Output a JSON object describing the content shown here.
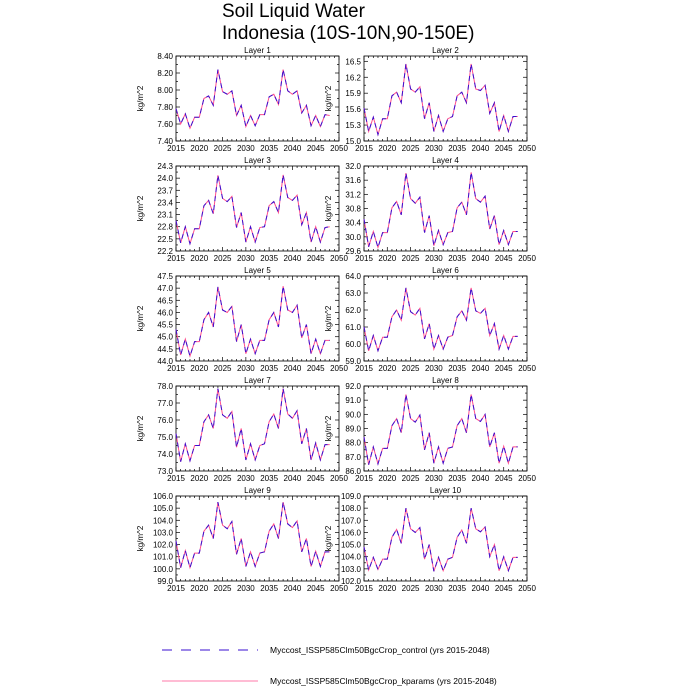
{
  "figure": {
    "title_line1": "Soil Liquid Water",
    "title_line2": "Indonesia (10S-10N,90-150E)"
  },
  "colors": {
    "control": "#3a0fd0",
    "kparams": "#ff4d8c"
  },
  "legend": {
    "control_label": "Myccost_ISSP585Clm50BgcCrop_control (yrs 2015-2048)",
    "kparams_label": "Myccost_ISSP585Clm50BgcCrop_kparams (yrs 2015-2048)"
  },
  "chart_data": {
    "type": "line",
    "xlim": [
      2015,
      2050
    ],
    "xticks": [
      2015,
      2020,
      2025,
      2030,
      2035,
      2040,
      2045,
      2050
    ],
    "years": [
      2015,
      2016,
      2017,
      2018,
      2019,
      2020,
      2021,
      2022,
      2023,
      2024,
      2025,
      2026,
      2027,
      2028,
      2029,
      2030,
      2031,
      2032,
      2033,
      2034,
      2035,
      2036,
      2037,
      2038,
      2039,
      2040,
      2041,
      2042,
      2043,
      2044,
      2045,
      2046,
      2047,
      2048
    ],
    "series_names": [
      "Myccost_ISSP585Clm50BgcCrop_control",
      "Myccost_ISSP585Clm50BgcCrop_kparams"
    ],
    "panels": [
      {
        "title": "Layer 1",
        "ylabel": "kg/m^2",
        "ylim": [
          7.4,
          8.4
        ],
        "yticks": [
          "7.40",
          "7.60",
          "7.80",
          "8.00",
          "8.20",
          "8.40"
        ],
        "values": [
          7.78,
          7.6,
          7.72,
          7.55,
          7.68,
          7.68,
          7.9,
          7.93,
          7.82,
          8.24,
          7.98,
          7.95,
          7.99,
          7.7,
          7.82,
          7.57,
          7.7,
          7.58,
          7.71,
          7.71,
          7.92,
          7.95,
          7.83,
          8.24,
          7.99,
          7.95,
          7.99,
          7.73,
          7.82,
          7.58,
          7.7,
          7.57,
          7.71,
          7.7
        ]
      },
      {
        "title": "Layer 2",
        "ylabel": "kg/m^2",
        "ylim": [
          15.0,
          16.6
        ],
        "yticks": [
          "15.0",
          "15.3",
          "15.6",
          "15.9",
          "16.2",
          "16.5"
        ],
        "values": [
          15.62,
          15.18,
          15.45,
          15.12,
          15.42,
          15.42,
          15.85,
          15.92,
          15.72,
          16.45,
          15.98,
          15.92,
          16.02,
          15.42,
          15.72,
          15.18,
          15.48,
          15.18,
          15.42,
          15.46,
          15.85,
          15.92,
          15.72,
          16.45,
          15.98,
          15.95,
          16.05,
          15.52,
          15.72,
          15.18,
          15.48,
          15.18,
          15.46,
          15.46
        ]
      },
      {
        "title": "Layer 3",
        "ylabel": "kg/m^2",
        "ylim": [
          22.2,
          24.3
        ],
        "yticks": [
          "22.2",
          "22.5",
          "22.8",
          "23.1",
          "23.4",
          "23.7",
          "24.0",
          "24.3"
        ],
        "values": [
          22.95,
          22.4,
          22.8,
          22.38,
          22.75,
          22.75,
          23.32,
          23.45,
          23.12,
          24.07,
          23.5,
          23.42,
          23.55,
          22.78,
          23.15,
          22.42,
          22.8,
          22.42,
          22.78,
          22.8,
          23.32,
          23.42,
          23.15,
          24.08,
          23.52,
          23.45,
          23.58,
          22.85,
          23.15,
          22.42,
          22.8,
          22.42,
          22.78,
          22.8
        ]
      },
      {
        "title": "Layer 4",
        "ylabel": "kg/m^2",
        "ylim": [
          29.6,
          32.0
        ],
        "yticks": [
          "29.6",
          "30.0",
          "30.4",
          "30.8",
          "31.2",
          "31.6",
          "32.0"
        ],
        "values": [
          30.5,
          29.72,
          30.15,
          29.7,
          30.12,
          30.12,
          30.82,
          31.0,
          30.62,
          31.8,
          31.08,
          30.95,
          31.12,
          30.12,
          30.6,
          29.75,
          30.18,
          29.78,
          30.12,
          30.15,
          30.82,
          30.98,
          30.62,
          31.82,
          31.08,
          30.98,
          31.15,
          30.22,
          30.6,
          29.78,
          30.18,
          29.78,
          30.15,
          30.15
        ]
      },
      {
        "title": "Layer 5",
        "ylabel": "kg/m^2",
        "ylim": [
          44.0,
          47.5
        ],
        "yticks": [
          "44.0",
          "44.5",
          "45.0",
          "45.5",
          "46.0",
          "46.5",
          "47.0",
          "47.5"
        ],
        "values": [
          45.3,
          44.25,
          44.9,
          44.2,
          44.8,
          44.8,
          45.7,
          46.0,
          45.4,
          47.05,
          46.1,
          46.0,
          46.25,
          44.8,
          45.5,
          44.3,
          44.9,
          44.3,
          44.85,
          44.85,
          45.7,
          46.0,
          45.4,
          47.08,
          46.1,
          46.0,
          46.3,
          44.95,
          45.5,
          44.3,
          44.9,
          44.3,
          44.85,
          44.85
        ]
      },
      {
        "title": "Layer 6",
        "ylabel": "kg/m^2",
        "ylim": [
          59.0,
          64.0
        ],
        "yticks": [
          "59.0",
          "60.0",
          "61.0",
          "62.0",
          "63.0",
          "64.0"
        ],
        "values": [
          61.0,
          59.6,
          60.5,
          59.6,
          60.4,
          60.4,
          61.6,
          62.0,
          61.4,
          63.3,
          61.9,
          61.7,
          62.1,
          60.3,
          61.2,
          59.7,
          60.5,
          59.7,
          60.4,
          60.5,
          61.6,
          61.95,
          61.4,
          63.3,
          61.95,
          61.8,
          62.1,
          60.5,
          61.2,
          59.7,
          60.5,
          59.7,
          60.45,
          60.45
        ]
      },
      {
        "title": "Layer 7",
        "ylabel": "kg/m^2",
        "ylim": [
          73.0,
          78.0
        ],
        "yticks": [
          "73.0",
          "74.0",
          "75.0",
          "76.0",
          "77.0",
          "78.0"
        ],
        "values": [
          75.2,
          73.55,
          74.6,
          73.6,
          74.5,
          74.5,
          75.9,
          76.3,
          75.5,
          77.85,
          76.3,
          76.1,
          76.5,
          74.4,
          75.5,
          73.65,
          74.6,
          73.65,
          74.5,
          74.6,
          75.9,
          76.35,
          75.5,
          77.85,
          76.35,
          76.1,
          76.55,
          74.6,
          75.5,
          73.65,
          74.65,
          73.65,
          74.55,
          74.55
        ]
      },
      {
        "title": "Layer 8",
        "ylabel": "kg/m^2",
        "ylim": [
          86.0,
          92.0
        ],
        "yticks": [
          "86.0",
          "87.0",
          "88.0",
          "89.0",
          "90.0",
          "91.0",
          "92.0"
        ],
        "values": [
          88.4,
          86.45,
          87.7,
          86.5,
          87.6,
          87.6,
          89.2,
          89.7,
          88.7,
          91.4,
          89.7,
          89.45,
          89.95,
          87.5,
          88.7,
          86.55,
          87.7,
          86.55,
          87.6,
          87.7,
          89.2,
          89.7,
          88.7,
          91.4,
          89.7,
          89.5,
          90.0,
          87.7,
          88.7,
          86.55,
          87.75,
          86.55,
          87.7,
          87.7
        ]
      },
      {
        "title": "Layer 9",
        "ylabel": "kg/m^2",
        "ylim": [
          99.0,
          106.0
        ],
        "yticks": [
          "99.0",
          "100.0",
          "101.0",
          "102.0",
          "103.0",
          "104.0",
          "105.0",
          "106.0"
        ],
        "values": [
          102.3,
          100.1,
          101.5,
          100.1,
          101.3,
          101.3,
          103.1,
          103.6,
          102.5,
          105.5,
          103.6,
          103.3,
          103.9,
          101.2,
          102.5,
          100.2,
          101.4,
          100.2,
          101.3,
          101.4,
          103.1,
          103.7,
          102.5,
          105.5,
          103.7,
          103.4,
          103.95,
          101.4,
          102.5,
          100.2,
          101.45,
          100.2,
          101.4,
          101.4
        ]
      },
      {
        "title": "Layer 10",
        "ylabel": "kg/m^2",
        "ylim": [
          102.0,
          109.0
        ],
        "yticks": [
          "102.0",
          "103.0",
          "104.0",
          "105.0",
          "106.0",
          "107.0",
          "108.0",
          "109.0"
        ],
        "values": [
          104.8,
          102.9,
          103.95,
          102.95,
          103.8,
          103.8,
          105.6,
          106.25,
          105.1,
          108.0,
          106.3,
          106.0,
          106.4,
          103.8,
          105.0,
          102.8,
          103.95,
          102.85,
          103.8,
          103.95,
          105.6,
          106.2,
          105.1,
          108.0,
          106.3,
          106.05,
          106.45,
          104.0,
          105.0,
          102.85,
          104.0,
          102.85,
          103.95,
          103.95
        ]
      }
    ]
  }
}
